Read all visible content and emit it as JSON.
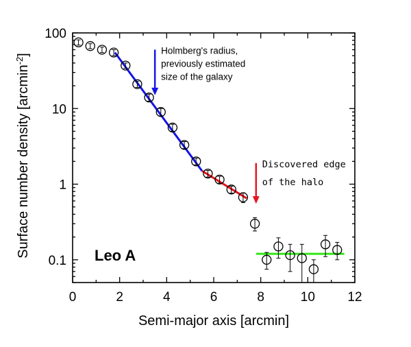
{
  "chart_data": {
    "type": "scatter",
    "xlabel": "Semi-major axis [arcmin]",
    "ylabel": "Surface number density [arcmin",
    "ylabel_sup": "-2",
    "ylabel_close": "]",
    "xlim": [
      0,
      12
    ],
    "ylim": [
      0.05,
      100
    ],
    "yscale": "log",
    "x_ticks": [
      "0",
      "2",
      "4",
      "6",
      "8",
      "10",
      "12"
    ],
    "y_ticks": [
      "0.1",
      "1",
      "10",
      "100"
    ],
    "galaxy_label": "Leo A",
    "points": [
      {
        "x": 0.25,
        "y": 75,
        "err": 6
      },
      {
        "x": 0.75,
        "y": 67,
        "err": 5
      },
      {
        "x": 1.25,
        "y": 60,
        "err": 5
      },
      {
        "x": 1.75,
        "y": 55,
        "err": 5
      },
      {
        "x": 2.25,
        "y": 37,
        "err": 3
      },
      {
        "x": 2.75,
        "y": 21,
        "err": 2
      },
      {
        "x": 3.25,
        "y": 14,
        "err": 1.5
      },
      {
        "x": 3.75,
        "y": 9,
        "err": 1
      },
      {
        "x": 4.25,
        "y": 5.6,
        "err": 0.6
      },
      {
        "x": 4.75,
        "y": 3.3,
        "err": 0.35
      },
      {
        "x": 5.25,
        "y": 2.0,
        "err": 0.2
      },
      {
        "x": 5.75,
        "y": 1.38,
        "err": 0.14
      },
      {
        "x": 6.25,
        "y": 1.15,
        "err": 0.12
      },
      {
        "x": 6.75,
        "y": 0.85,
        "err": 0.09
      },
      {
        "x": 7.25,
        "y": 0.67,
        "err": 0.1
      },
      {
        "x": 7.75,
        "y": 0.3,
        "err": 0.06
      },
      {
        "x": 8.25,
        "y": 0.1,
        "err": 0.025
      },
      {
        "x": 8.75,
        "y": 0.15,
        "err": 0.045
      },
      {
        "x": 9.25,
        "y": 0.115,
        "err": 0.045
      },
      {
        "x": 9.75,
        "y": 0.105,
        "err": 0.055
      },
      {
        "x": 10.25,
        "y": 0.075,
        "err": 0.025
      },
      {
        "x": 10.75,
        "y": 0.16,
        "err": 0.05
      },
      {
        "x": 11.25,
        "y": 0.135,
        "err": 0.035
      }
    ],
    "fits": [
      {
        "color": "#1414e6",
        "points": [
          [
            1.8,
            55
          ],
          [
            5.5,
            1.5
          ]
        ]
      },
      {
        "color": "#e6141e",
        "points": [
          [
            5.5,
            1.5
          ],
          [
            7.4,
            0.65
          ]
        ]
      },
      {
        "color": "#32e614",
        "points": [
          [
            7.8,
            0.12
          ],
          [
            11.55,
            0.12
          ]
        ]
      }
    ],
    "annotations": [
      {
        "lines": [
          "Holmberg's radius,",
          "previously estimated",
          "size of the galaxy"
        ],
        "color": "#1414e6",
        "arrow_x": 3.5,
        "arrow_from_y": 60,
        "arrow_to_y": 15
      },
      {
        "lines": [
          "Discovered edge",
          "of the halo"
        ],
        "color": "#e6141e",
        "arrow_x": 7.8,
        "arrow_from_y": 1.9,
        "arrow_to_y": 0.55
      }
    ]
  }
}
